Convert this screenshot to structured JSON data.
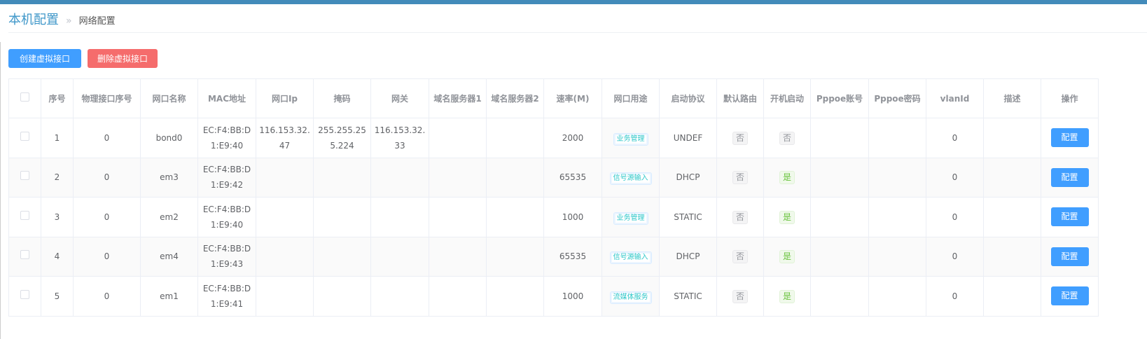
{
  "breadcrumb": {
    "root": "本机配置",
    "separator": "»",
    "current": "网络配置"
  },
  "toolbar": {
    "create_label": "创建虚拟接口",
    "delete_label": "删除虚拟接口"
  },
  "colors": {
    "primary": "#409eff",
    "danger": "#f56c6c",
    "topbar": "#428bba",
    "tag_text": "#2ec7c9",
    "yes": "#67c23a"
  },
  "table": {
    "headers": [
      "",
      "序号",
      "物理接口序号",
      "网口名称",
      "MAC地址",
      "网口Ip",
      "掩码",
      "网关",
      "域名服务器1",
      "域名服务器2",
      "速率(M)",
      "网口用途",
      "启动协议",
      "默认路由",
      "开机启动",
      "Pppoe账号",
      "Pppoe密码",
      "vlanId",
      "描述",
      "操作"
    ],
    "rows": [
      {
        "no": "1",
        "phys": "0",
        "name": "bond0",
        "mac": "EC:F4:BB:D1:E9:40",
        "ip": "116.153.32.47",
        "mask": "255.255.255.224",
        "gw": "116.153.32.33",
        "dns1": "",
        "dns2": "",
        "speed": "2000",
        "usage": "业务管理",
        "proto": "UNDEF",
        "def_route": "否",
        "boot": "否",
        "boot_yes": false,
        "pppoe_user": "",
        "pppoe_pass": "",
        "vlan": "0",
        "desc": "",
        "action": "配置"
      },
      {
        "no": "2",
        "phys": "0",
        "name": "em3",
        "mac": "EC:F4:BB:D1:E9:42",
        "ip": "",
        "mask": "",
        "gw": "",
        "dns1": "",
        "dns2": "",
        "speed": "65535",
        "usage": "信号源输入",
        "proto": "DHCP",
        "def_route": "否",
        "boot": "是",
        "boot_yes": true,
        "pppoe_user": "",
        "pppoe_pass": "",
        "vlan": "0",
        "desc": "",
        "action": "配置"
      },
      {
        "no": "3",
        "phys": "0",
        "name": "em2",
        "mac": "EC:F4:BB:D1:E9:40",
        "ip": "",
        "mask": "",
        "gw": "",
        "dns1": "",
        "dns2": "",
        "speed": "1000",
        "usage": "业务管理",
        "proto": "STATIC",
        "def_route": "否",
        "boot": "是",
        "boot_yes": true,
        "pppoe_user": "",
        "pppoe_pass": "",
        "vlan": "0",
        "desc": "",
        "action": "配置"
      },
      {
        "no": "4",
        "phys": "0",
        "name": "em4",
        "mac": "EC:F4:BB:D1:E9:43",
        "ip": "",
        "mask": "",
        "gw": "",
        "dns1": "",
        "dns2": "",
        "speed": "65535",
        "usage": "信号源输入",
        "proto": "DHCP",
        "def_route": "否",
        "boot": "是",
        "boot_yes": true,
        "pppoe_user": "",
        "pppoe_pass": "",
        "vlan": "0",
        "desc": "",
        "action": "配置"
      },
      {
        "no": "5",
        "phys": "0",
        "name": "em1",
        "mac": "EC:F4:BB:D1:E9:41",
        "ip": "",
        "mask": "",
        "gw": "",
        "dns1": "",
        "dns2": "",
        "speed": "1000",
        "usage": "流媒体服务",
        "proto": "STATIC",
        "def_route": "否",
        "boot": "是",
        "boot_yes": true,
        "pppoe_user": "",
        "pppoe_pass": "",
        "vlan": "0",
        "desc": "",
        "action": "配置"
      }
    ]
  }
}
